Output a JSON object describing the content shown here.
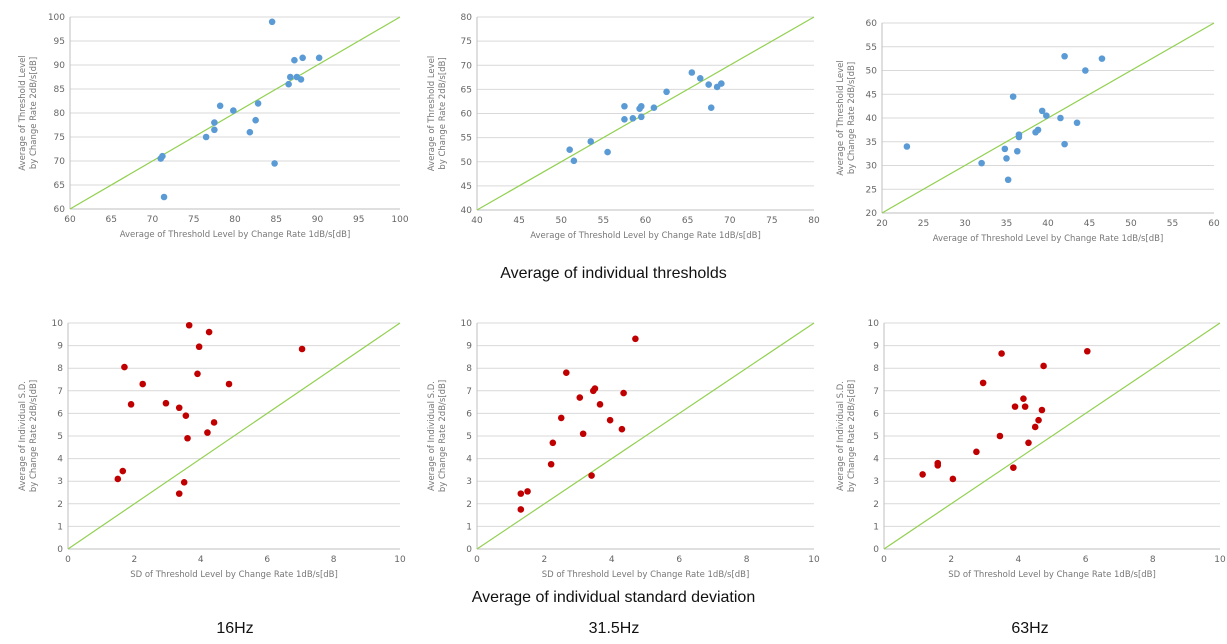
{
  "captions": {
    "top": "Average of individual thresholds",
    "bottom": "Average of individual standard deviation"
  },
  "frequencies": [
    "16Hz",
    "31.5Hz",
    "63Hz"
  ],
  "colors": {
    "mean_points": "#5b9bd5",
    "sd_points": "#c00000",
    "diagonal": "#92d050",
    "grid": "#d9d9d9"
  },
  "chart_data": [
    {
      "type": "scatter",
      "xlabel": "Average of Threshold Level by Change Rate 1dB/s[dB]",
      "ylabel": [
        "Average of Threshold Level",
        "by Change Rate 2dB/s[dB]"
      ],
      "xlim": [
        60,
        100
      ],
      "ylim": [
        60,
        100
      ],
      "xticks": [
        "60",
        "65",
        "70",
        "75",
        "80",
        "85",
        "90",
        "95",
        "100"
      ],
      "yticks": [
        "60",
        "65",
        "70",
        "75",
        "80",
        "85",
        "90",
        "95",
        "100"
      ],
      "grid": true,
      "reference_line": "y=x",
      "color": "#5b9bd5",
      "points": [
        [
          71,
          70.5
        ],
        [
          71.2,
          71
        ],
        [
          71.4,
          62.5
        ],
        [
          76.5,
          75
        ],
        [
          77.5,
          76.5
        ],
        [
          77.5,
          78
        ],
        [
          78.2,
          81.5
        ],
        [
          79.8,
          80.5
        ],
        [
          81.8,
          76
        ],
        [
          82.5,
          78.5
        ],
        [
          82.8,
          82
        ],
        [
          84.5,
          99
        ],
        [
          84.8,
          69.5
        ],
        [
          86.5,
          86
        ],
        [
          86.7,
          87.5
        ],
        [
          87.2,
          91
        ],
        [
          87.5,
          87.5
        ],
        [
          88,
          87
        ],
        [
          88.2,
          91.5
        ],
        [
          90.2,
          91.5
        ]
      ]
    },
    {
      "type": "scatter",
      "xlabel": "Average of Threshold Level by Change Rate 1dB/s[dB]",
      "ylabel": [
        "Average of Threshold Level",
        "by Change Rate 2dB/s[dB]"
      ],
      "xlim": [
        40,
        80
      ],
      "ylim": [
        40,
        80
      ],
      "xticks": [
        "40",
        "45",
        "50",
        "55",
        "60",
        "65",
        "70",
        "75",
        "80"
      ],
      "yticks": [
        "40",
        "45",
        "50",
        "55",
        "60",
        "65",
        "70",
        "75",
        "80"
      ],
      "grid": true,
      "reference_line": "y=x",
      "color": "#5b9bd5",
      "points": [
        [
          51,
          52.5
        ],
        [
          51.5,
          50.2
        ],
        [
          53.5,
          54.2
        ],
        [
          55.5,
          52
        ],
        [
          57.5,
          58.8
        ],
        [
          57.5,
          61.5
        ],
        [
          58.5,
          59
        ],
        [
          59.3,
          61
        ],
        [
          59.5,
          61.5
        ],
        [
          59.5,
          59.3
        ],
        [
          61,
          61.2
        ],
        [
          62.5,
          64.5
        ],
        [
          65.5,
          68.5
        ],
        [
          66.5,
          67.3
        ],
        [
          67.5,
          66
        ],
        [
          67.8,
          61.2
        ],
        [
          68.5,
          65.5
        ],
        [
          69,
          66.2
        ]
      ]
    },
    {
      "type": "scatter",
      "xlabel": "Average of Threshold Level by Change Rate 1dB/s[dB]",
      "ylabel": [
        "Average of Threshold Level",
        "by Change Rate 2dB/s[dB]"
      ],
      "xlim": [
        20,
        60
      ],
      "ylim": [
        20,
        60
      ],
      "xticks": [
        "20",
        "25",
        "30",
        "35",
        "40",
        "45",
        "50",
        "55",
        "60"
      ],
      "yticks": [
        "20",
        "25",
        "30",
        "35",
        "40",
        "45",
        "50",
        "55",
        "60"
      ],
      "grid": true,
      "reference_line": "y=x",
      "color": "#5b9bd5",
      "points": [
        [
          23,
          34
        ],
        [
          32,
          30.5
        ],
        [
          34.8,
          33.5
        ],
        [
          35,
          31.5
        ],
        [
          35.2,
          27
        ],
        [
          35.8,
          44.5
        ],
        [
          36.3,
          33
        ],
        [
          36.5,
          36
        ],
        [
          36.5,
          36.5
        ],
        [
          38.5,
          37
        ],
        [
          38.8,
          37.5
        ],
        [
          39.3,
          41.5
        ],
        [
          39.8,
          40.5
        ],
        [
          41.5,
          40
        ],
        [
          42,
          34.5
        ],
        [
          42,
          53
        ],
        [
          43.5,
          39
        ],
        [
          44.5,
          50
        ],
        [
          46.5,
          52.5
        ]
      ]
    },
    {
      "type": "scatter",
      "xlabel": "SD of Threshold Level by Change Rate 1dB/s[dB]",
      "ylabel": [
        "Average of Individual S.D.",
        "by Change Rate 2dB/s[dB]"
      ],
      "xlim": [
        0,
        10
      ],
      "ylim": [
        0,
        10
      ],
      "xticks": [
        "0",
        "2",
        "4",
        "6",
        "8",
        "10"
      ],
      "yticks": [
        "0",
        "1",
        "2",
        "3",
        "4",
        "5",
        "6",
        "7",
        "8",
        "9",
        "10"
      ],
      "grid": true,
      "reference_line": "y=x",
      "color": "#c00000",
      "points": [
        [
          1.5,
          3.1
        ],
        [
          1.65,
          3.45
        ],
        [
          1.7,
          8.05
        ],
        [
          1.9,
          6.4
        ],
        [
          2.25,
          7.3
        ],
        [
          2.95,
          6.45
        ],
        [
          3.35,
          6.25
        ],
        [
          3.35,
          2.45
        ],
        [
          3.5,
          2.95
        ],
        [
          3.55,
          5.9
        ],
        [
          3.6,
          4.9
        ],
        [
          3.65,
          9.9
        ],
        [
          3.9,
          7.75
        ],
        [
          3.95,
          8.95
        ],
        [
          4.2,
          5.15
        ],
        [
          4.25,
          9.6
        ],
        [
          4.4,
          5.6
        ],
        [
          4.85,
          7.3
        ],
        [
          7.05,
          8.85
        ]
      ]
    },
    {
      "type": "scatter",
      "xlabel": "SD of Threshold Level by Change Rate 1dB/s[dB]",
      "ylabel": [
        "Average of Individual S.D.",
        "by Change Rate 2dB/s[dB]"
      ],
      "xlim": [
        0,
        10
      ],
      "ylim": [
        0,
        10
      ],
      "xticks": [
        "0",
        "2",
        "4",
        "6",
        "8",
        "10"
      ],
      "yticks": [
        "0",
        "1",
        "2",
        "3",
        "4",
        "5",
        "6",
        "7",
        "8",
        "9",
        "10"
      ],
      "grid": true,
      "reference_line": "y=x",
      "color": "#c00000",
      "points": [
        [
          1.3,
          2.45
        ],
        [
          1.3,
          1.75
        ],
        [
          1.5,
          2.55
        ],
        [
          2.2,
          3.75
        ],
        [
          2.25,
          4.7
        ],
        [
          2.5,
          5.8
        ],
        [
          2.65,
          7.8
        ],
        [
          3.05,
          6.7
        ],
        [
          3.15,
          5.1
        ],
        [
          3.4,
          3.25
        ],
        [
          3.45,
          7
        ],
        [
          3.5,
          7.1
        ],
        [
          3.65,
          6.4
        ],
        [
          3.95,
          5.7
        ],
        [
          4.3,
          5.3
        ],
        [
          4.35,
          6.9
        ],
        [
          4.7,
          9.3
        ]
      ]
    },
    {
      "type": "scatter",
      "xlabel": "SD of Threshold Level by Change Rate 1dB/s[dB]",
      "ylabel": [
        "Average of Individual S.D.",
        "by Change Rate 2dB/s[dB]"
      ],
      "xlim": [
        0,
        10
      ],
      "ylim": [
        0,
        10
      ],
      "xticks": [
        "0",
        "2",
        "4",
        "6",
        "8",
        "10"
      ],
      "yticks": [
        "0",
        "1",
        "2",
        "3",
        "4",
        "5",
        "6",
        "7",
        "8",
        "9",
        "10"
      ],
      "grid": true,
      "reference_line": "y=x",
      "color": "#c00000",
      "points": [
        [
          1.15,
          3.3
        ],
        [
          1.6,
          3.7
        ],
        [
          1.6,
          3.8
        ],
        [
          2.05,
          3.1
        ],
        [
          2.75,
          4.3
        ],
        [
          2.95,
          7.35
        ],
        [
          3.45,
          5
        ],
        [
          3.5,
          8.65
        ],
        [
          3.85,
          3.6
        ],
        [
          3.9,
          6.3
        ],
        [
          4.15,
          6.65
        ],
        [
          4.2,
          6.3
        ],
        [
          4.3,
          4.7
        ],
        [
          4.5,
          5.4
        ],
        [
          4.6,
          5.7
        ],
        [
          4.7,
          6.15
        ],
        [
          4.75,
          8.1
        ],
        [
          6.05,
          8.75
        ]
      ]
    }
  ]
}
